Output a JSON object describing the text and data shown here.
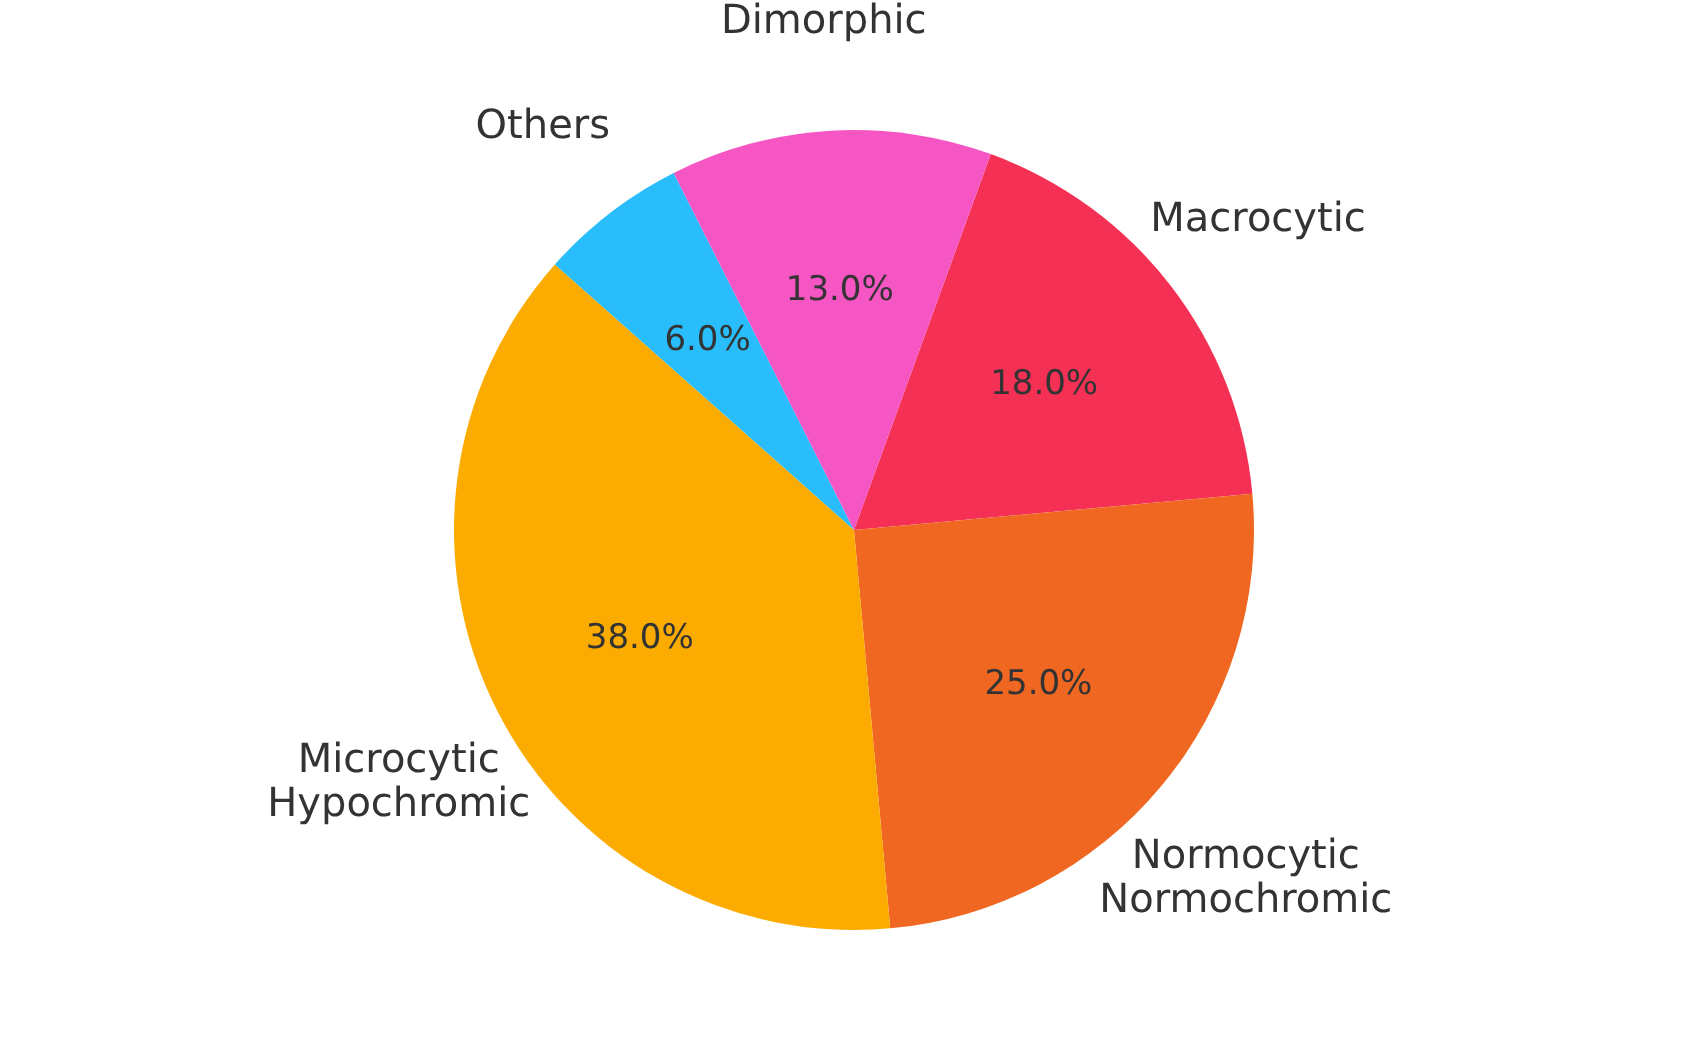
{
  "chart_data": {
    "type": "pie",
    "categories": [
      "Macrocytic",
      "Normocytic\nNormochromic",
      "Microcytic\nHypochromic",
      "Others",
      "Dimorphic"
    ],
    "values": [
      18,
      25,
      38,
      6,
      13
    ],
    "value_labels": [
      "18.0%",
      "25.0%",
      "38.0%",
      "6.0%",
      "13.0%"
    ],
    "colors": [
      "#f43155",
      "#f06722",
      "#fcac00",
      "#29bdfb",
      "#f655c4"
    ],
    "legend": false
  }
}
